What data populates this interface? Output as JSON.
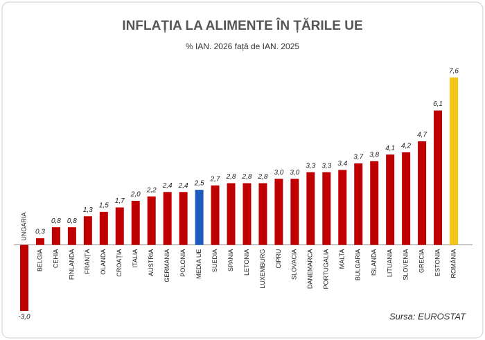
{
  "chart_data": {
    "type": "bar",
    "title": "INFLAȚIA LA ALIMENTE ÎN ȚĂRILE UE",
    "subtitle": "% IAN. 2026 față de IAN. 2025",
    "source": "Sursa: EUROSTAT",
    "categories": [
      "UNGARIA",
      "BELGIA",
      "CEHIA",
      "FINLANDA",
      "FRANȚA",
      "OLANDA",
      "CROAȚIA",
      "ITALIA",
      "AUSTRIA",
      "GERMANIA",
      "POLONIA",
      "MEDIA UE",
      "SUEDIA",
      "SPANIA",
      "LETONIA",
      "LUXEMBURG",
      "CIPRU",
      "SLOVACIA",
      "DANEMARCA",
      "PORTUGALIA",
      "MALTA",
      "BULGARIA",
      "ISLANDA",
      "LITUANIA",
      "SLOVENIA",
      "GRECIA",
      "ESTONIA",
      "ROMÂNIA"
    ],
    "values": [
      -3.0,
      0.3,
      0.8,
      0.8,
      1.3,
      1.5,
      1.7,
      2.0,
      2.2,
      2.4,
      2.4,
      2.5,
      2.7,
      2.8,
      2.8,
      2.8,
      3.0,
      3.0,
      3.3,
      3.3,
      3.4,
      3.7,
      3.8,
      4.1,
      4.2,
      4.7,
      6.1,
      7.6
    ],
    "value_labels": [
      "-3,0",
      "0,3",
      "0,8",
      "0,8",
      "1,3",
      "1,5",
      "1,7",
      "2,0",
      "2,2",
      "2,4",
      "2,4",
      "2,5",
      "2,7",
      "2,8",
      "2,8",
      "2,8",
      "3,0",
      "3,0",
      "3,3",
      "3,3",
      "3,4",
      "3,7",
      "3,8",
      "4,1",
      "4,2",
      "4,7",
      "6,1",
      "7,6"
    ],
    "colors": [
      "#c00000",
      "#c00000",
      "#c00000",
      "#c00000",
      "#c00000",
      "#c00000",
      "#c00000",
      "#c00000",
      "#c00000",
      "#c00000",
      "#c00000",
      "#1f5bbd",
      "#c00000",
      "#c00000",
      "#c00000",
      "#c00000",
      "#c00000",
      "#c00000",
      "#c00000",
      "#c00000",
      "#c00000",
      "#c00000",
      "#c00000",
      "#c00000",
      "#c00000",
      "#c00000",
      "#c00000",
      "#f5c518"
    ],
    "ylim": [
      -3.5,
      8.6
    ]
  }
}
